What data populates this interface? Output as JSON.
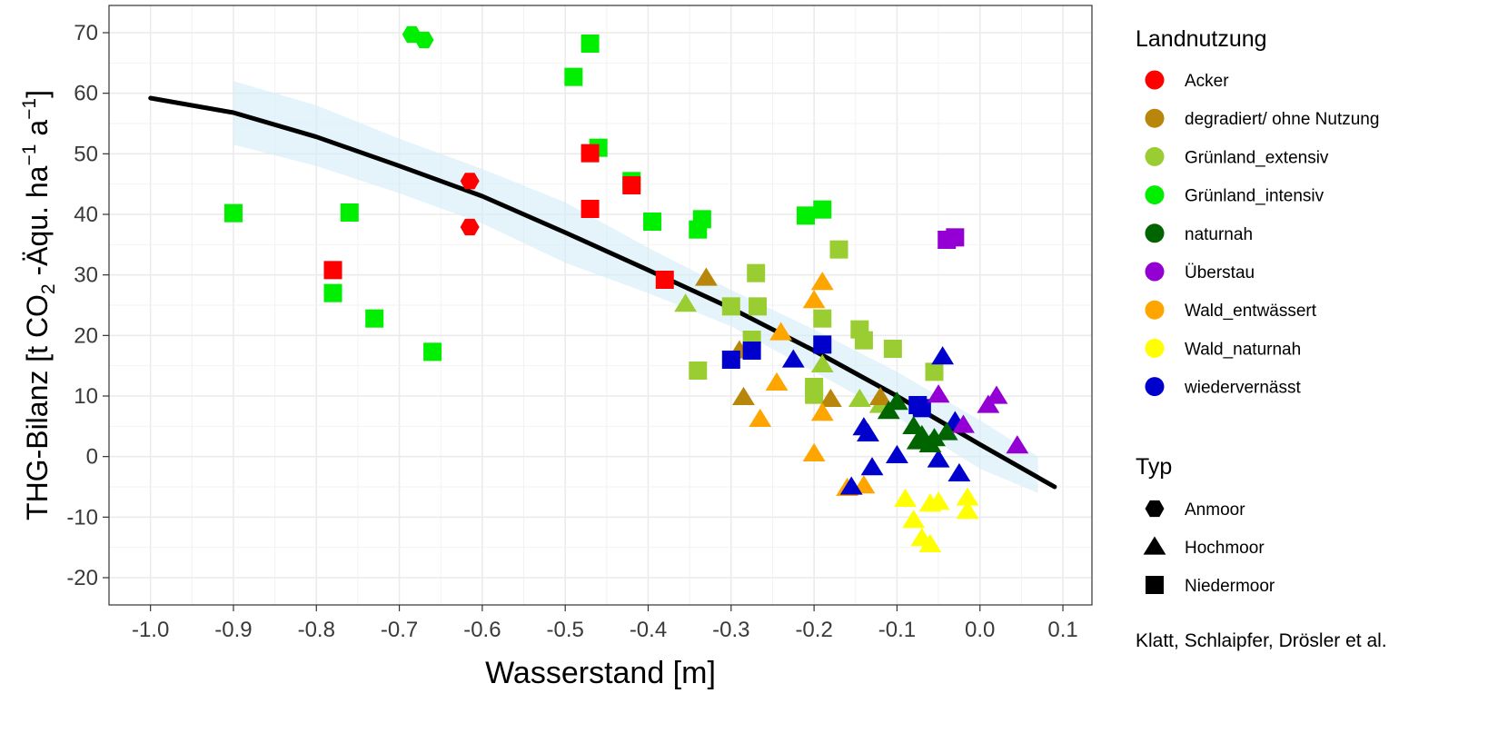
{
  "chart_data": {
    "type": "scatter",
    "title": "",
    "xlabel": "Wasserstand [m]",
    "ylabel": {
      "main": "THG-Bilanz [t CO",
      "sub2": "2",
      "mid": " -Äqu. ha",
      "sup1": "−1",
      "a": " a",
      "sup2": "−1",
      "end": "]"
    },
    "xlim": [
      -1.05,
      0.135
    ],
    "ylim": [
      -24.5,
      74.5
    ],
    "x_ticks": [
      -1.0,
      -0.9,
      -0.8,
      -0.7,
      -0.6,
      -0.5,
      -0.4,
      -0.3,
      -0.2,
      -0.1,
      0.0,
      0.1
    ],
    "x_tick_labels": [
      "-1.0",
      "-0.9",
      "-0.8",
      "-0.7",
      "-0.6",
      "-0.5",
      "-0.4",
      "-0.3",
      "-0.2",
      "-0.1",
      "0.0",
      "0.1"
    ],
    "y_ticks": [
      -20,
      -10,
      0,
      10,
      20,
      30,
      40,
      50,
      60,
      70
    ],
    "y_tick_labels": [
      "-20",
      "-10",
      "0",
      "10",
      "20",
      "30",
      "40",
      "50",
      "60",
      "70"
    ],
    "grid": true,
    "legend_position": "right",
    "colors": {
      "Acker": "#ff0000",
      "degradiert/ ohne Nutzung": "#b8860b",
      "Grünland_extensiv": "#9acd32",
      "Grünland_intensiv": "#00ee00",
      "naturnah": "#006400",
      "Überstau": "#9400d3",
      "Wald_entwässert": "#ffa500",
      "Wald_naturnah": "#ffff00",
      "wiedervernässt": "#0000cd"
    },
    "legend": {
      "color_title": "Landnutzung",
      "color_entries": [
        "Acker",
        "degradiert/ ohne Nutzung",
        "Grünland_extensiv",
        "Grünland_intensiv",
        "naturnah",
        "Überstau",
        "Wald_entwässert",
        "Wald_naturnah",
        "wiedervernässt"
      ],
      "shape_title": "Typ",
      "shape_entries": [
        {
          "label": "Anmoor",
          "shape": "circle"
        },
        {
          "label": "Hochmoor",
          "shape": "triangle"
        },
        {
          "label": "Niedermoor",
          "shape": "square"
        }
      ]
    },
    "trend_line": {
      "x": [
        -1.0,
        -0.9,
        -0.8,
        -0.7,
        -0.6,
        -0.5,
        -0.4,
        -0.3,
        -0.2,
        -0.1,
        0.0,
        0.09
      ],
      "y": [
        59.2,
        56.8,
        52.8,
        48.0,
        43.0,
        37.0,
        30.8,
        24.5,
        17.5,
        10.0,
        2.0,
        -5.0
      ]
    },
    "confidence_band": {
      "x": [
        -0.9,
        -0.8,
        -0.7,
        -0.6,
        -0.5,
        -0.4,
        -0.3,
        -0.2,
        -0.1,
        0.0,
        0.07
      ],
      "upper": [
        62.0,
        58.0,
        52.5,
        47.5,
        42.0,
        34.5,
        27.5,
        21.0,
        14.0,
        6.0,
        0.0
      ],
      "lower": [
        51.5,
        48.0,
        43.5,
        38.5,
        32.0,
        27.0,
        21.5,
        14.0,
        6.5,
        -2.0,
        -6.0
      ]
    },
    "series": [
      {
        "landnutzung": "Grünland_intensiv",
        "typ": "Niedermoor",
        "points": [
          [
            -0.9,
            40.2
          ],
          [
            -0.76,
            40.3
          ],
          [
            -0.78,
            27.0
          ],
          [
            -0.73,
            22.8
          ],
          [
            -0.66,
            17.3
          ],
          [
            -0.47,
            68.2
          ],
          [
            -0.49,
            62.7
          ],
          [
            -0.46,
            51.0
          ],
          [
            -0.42,
            45.5
          ],
          [
            -0.395,
            38.8
          ],
          [
            -0.335,
            39.2
          ],
          [
            -0.34,
            37.5
          ],
          [
            -0.21,
            39.8
          ],
          [
            -0.19,
            40.8
          ]
        ]
      },
      {
        "landnutzung": "Grünland_intensiv",
        "typ": "Anmoor",
        "points": [
          [
            -0.685,
            69.7
          ],
          [
            -0.67,
            68.8
          ]
        ]
      },
      {
        "landnutzung": "Acker",
        "typ": "Niedermoor",
        "points": [
          [
            -0.78,
            30.8
          ],
          [
            -0.47,
            50.1
          ],
          [
            -0.47,
            40.9
          ],
          [
            -0.42,
            44.8
          ],
          [
            -0.38,
            29.2
          ]
        ]
      },
      {
        "landnutzung": "Acker",
        "typ": "Anmoor",
        "points": [
          [
            -0.615,
            45.5
          ],
          [
            -0.615,
            37.9
          ]
        ]
      },
      {
        "landnutzung": "Grünland_extensiv",
        "typ": "Niedermoor",
        "points": [
          [
            -0.27,
            30.3
          ],
          [
            -0.3,
            24.8
          ],
          [
            -0.268,
            24.8
          ],
          [
            -0.275,
            19.3
          ],
          [
            -0.34,
            14.2
          ],
          [
            -0.19,
            22.8
          ],
          [
            -0.17,
            34.2
          ],
          [
            -0.145,
            21.0
          ],
          [
            -0.14,
            19.2
          ],
          [
            -0.105,
            17.8
          ],
          [
            -0.2,
            11.5
          ],
          [
            -0.2,
            10.2
          ],
          [
            -0.055,
            14.0
          ]
        ]
      },
      {
        "landnutzung": "Grünland_extensiv",
        "typ": "Hochmoor",
        "points": [
          [
            -0.355,
            25.2
          ],
          [
            -0.19,
            15.2
          ],
          [
            -0.145,
            9.5
          ],
          [
            -0.12,
            8.5
          ]
        ]
      },
      {
        "landnutzung": "degradiert/ ohne Nutzung",
        "typ": "Hochmoor",
        "points": [
          [
            -0.33,
            29.5
          ],
          [
            -0.29,
            17.5
          ],
          [
            -0.285,
            9.8
          ],
          [
            -0.18,
            9.5
          ],
          [
            -0.12,
            9.8
          ]
        ]
      },
      {
        "landnutzung": "Wald_entwässert",
        "typ": "Hochmoor",
        "points": [
          [
            -0.19,
            28.8
          ],
          [
            -0.2,
            25.8
          ],
          [
            -0.24,
            20.5
          ],
          [
            -0.245,
            12.2
          ],
          [
            -0.265,
            6.2
          ],
          [
            -0.19,
            7.2
          ],
          [
            -0.2,
            0.5
          ],
          [
            -0.14,
            -4.8
          ],
          [
            -0.16,
            -5.2
          ]
        ]
      },
      {
        "landnutzung": "wiedervernässt",
        "typ": "Niedermoor",
        "points": [
          [
            -0.3,
            16.0
          ],
          [
            -0.275,
            17.5
          ],
          [
            -0.19,
            18.5
          ],
          [
            -0.075,
            8.5
          ],
          [
            -0.07,
            8.0
          ]
        ]
      },
      {
        "landnutzung": "wiedervernässt",
        "typ": "Hochmoor",
        "points": [
          [
            -0.225,
            16.0
          ],
          [
            -0.14,
            4.8
          ],
          [
            -0.135,
            3.8
          ],
          [
            -0.13,
            -1.8
          ],
          [
            -0.1,
            0.2
          ],
          [
            -0.045,
            16.5
          ],
          [
            -0.05,
            -0.5
          ],
          [
            -0.03,
            5.8
          ],
          [
            -0.025,
            -2.8
          ],
          [
            -0.155,
            -5.0
          ]
        ]
      },
      {
        "landnutzung": "naturnah",
        "typ": "Hochmoor",
        "points": [
          [
            -0.1,
            9.0
          ],
          [
            -0.11,
            7.5
          ],
          [
            -0.08,
            5.0
          ],
          [
            -0.07,
            3.5
          ],
          [
            -0.075,
            2.5
          ],
          [
            -0.06,
            2.0
          ],
          [
            -0.055,
            3.0
          ],
          [
            -0.04,
            4.0
          ]
        ]
      },
      {
        "landnutzung": "Überstau",
        "typ": "Niedermoor",
        "points": [
          [
            -0.04,
            35.8
          ],
          [
            -0.03,
            36.2
          ]
        ]
      },
      {
        "landnutzung": "Überstau",
        "typ": "Hochmoor",
        "points": [
          [
            -0.05,
            10.2
          ],
          [
            -0.02,
            5.2
          ],
          [
            0.01,
            8.5
          ],
          [
            0.02,
            10.0
          ],
          [
            0.045,
            1.8
          ]
        ]
      },
      {
        "landnutzung": "Wald_naturnah",
        "typ": "Hochmoor",
        "points": [
          [
            -0.09,
            -7.0
          ],
          [
            -0.08,
            -10.5
          ],
          [
            -0.06,
            -7.8
          ],
          [
            -0.05,
            -7.5
          ],
          [
            -0.07,
            -13.5
          ],
          [
            -0.06,
            -14.5
          ],
          [
            -0.015,
            -6.8
          ],
          [
            -0.015,
            -9.0
          ]
        ]
      }
    ]
  },
  "credit": "Klatt, Schlaipfer, Drösler et al."
}
